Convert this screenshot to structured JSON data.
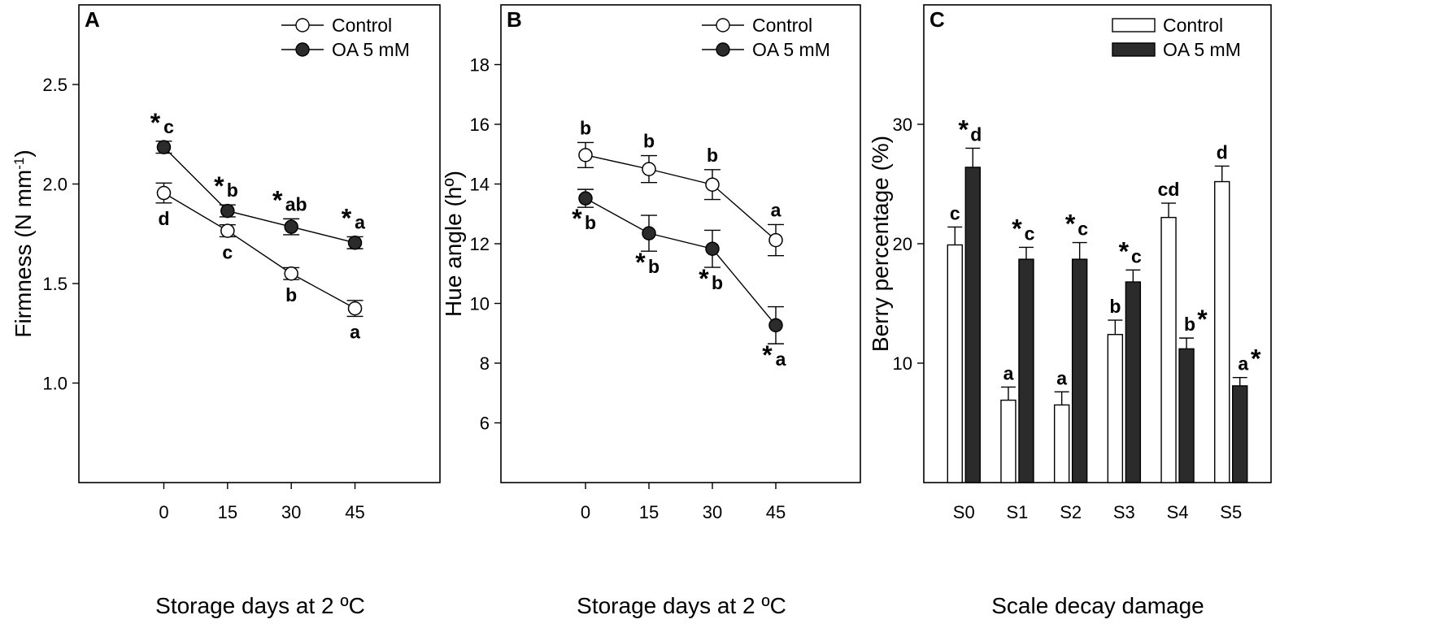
{
  "chart_data": [
    {
      "panel": "A",
      "type": "line",
      "xlabel": "Storage days at 2 ºC",
      "ylabel": "Firmness (N mm",
      "ylabel_sup": "-1",
      "ylabel_end": ")",
      "x": [
        0,
        15,
        30,
        45
      ],
      "x_ticks": [
        0,
        15,
        30,
        45
      ],
      "y_ticks": [
        1.0,
        1.5,
        2.0,
        2.5
      ],
      "y_tick_labels": [
        "1.0",
        "1.5",
        "2.0",
        "2.5"
      ],
      "xlim": [
        -20,
        65
      ],
      "ylim": [
        0.5,
        2.9
      ],
      "legend": [
        "Control",
        "OA 5 mM"
      ],
      "legend_position": "top-right",
      "series": [
        {
          "name": "Control",
          "fill": "#ffffff",
          "values": [
            1.955,
            1.765,
            1.55,
            1.375
          ],
          "errors": [
            0.05,
            0.03,
            0.03,
            0.04
          ],
          "letters": [
            "d",
            "c",
            "b",
            "a"
          ],
          "letter_position": "below",
          "stars": [
            false,
            false,
            false,
            false
          ]
        },
        {
          "name": "OA 5 mM",
          "fill": "#2b2b2b",
          "values": [
            2.185,
            1.865,
            1.785,
            1.705
          ],
          "errors": [
            0.03,
            0.03,
            0.04,
            0.03
          ],
          "letters": [
            "c",
            "b",
            "ab",
            "a"
          ],
          "letter_position": "above",
          "stars": [
            true,
            true,
            true,
            true
          ]
        }
      ]
    },
    {
      "panel": "B",
      "type": "line",
      "xlabel": "Storage days at 2 ºC",
      "ylabel": "Hue angle (hº)",
      "x": [
        0,
        15,
        30,
        45
      ],
      "x_ticks": [
        0,
        15,
        30,
        45
      ],
      "y_ticks": [
        6,
        8,
        10,
        12,
        14,
        16,
        18
      ],
      "y_tick_labels": [
        "6",
        "8",
        "10",
        "12",
        "14",
        "16",
        "18"
      ],
      "xlim": [
        -20,
        65
      ],
      "ylim": [
        4,
        20
      ],
      "legend": [
        "Control",
        "OA 5 mM"
      ],
      "legend_position": "top-right",
      "series": [
        {
          "name": "Control",
          "fill": "#ffffff",
          "values": [
            14.97,
            14.5,
            13.98,
            12.12
          ],
          "errors": [
            0.42,
            0.45,
            0.5,
            0.52
          ],
          "letters": [
            "b",
            "b",
            "b",
            "a"
          ],
          "letter_position": "above",
          "stars": [
            false,
            false,
            false,
            false
          ]
        },
        {
          "name": "OA 5 mM",
          "fill": "#2b2b2b",
          "values": [
            13.52,
            12.35,
            11.83,
            9.27
          ],
          "errors": [
            0.3,
            0.6,
            0.62,
            0.62
          ],
          "letters": [
            "b",
            "b",
            "b",
            "a"
          ],
          "letter_position": "below",
          "stars": [
            true,
            true,
            true,
            true
          ]
        }
      ]
    },
    {
      "panel": "C",
      "type": "bar",
      "xlabel": "Scale decay damage",
      "ylabel": "Berry percentage (%)",
      "categories": [
        "S0",
        "S1",
        "S2",
        "S3",
        "S4",
        "S5"
      ],
      "y_ticks": [
        10,
        20,
        30
      ],
      "y_tick_labels": [
        "10",
        "20",
        "30"
      ],
      "ylim": [
        0,
        40
      ],
      "legend": [
        "Control",
        "OA 5 mM"
      ],
      "legend_position": "top-right",
      "series": [
        {
          "name": "Control",
          "fill": "#ffffff",
          "values": [
            19.9,
            6.9,
            6.5,
            12.4,
            22.2,
            25.2
          ],
          "errors": [
            1.5,
            1.1,
            1.1,
            1.2,
            1.2,
            1.3
          ],
          "letters": [
            "c",
            "a",
            "a",
            "b",
            "cd",
            "d"
          ],
          "stars": [
            false,
            false,
            false,
            false,
            false,
            false
          ]
        },
        {
          "name": "OA 5 mM",
          "fill": "#2b2b2b",
          "values": [
            26.4,
            18.7,
            18.7,
            16.8,
            11.2,
            8.1
          ],
          "errors": [
            1.6,
            1.0,
            1.4,
            1.0,
            0.9,
            0.7
          ],
          "letters": [
            "d",
            "c",
            "c",
            "c",
            "b",
            "a"
          ],
          "stars": [
            true,
            true,
            true,
            true,
            true,
            true
          ]
        }
      ]
    }
  ]
}
